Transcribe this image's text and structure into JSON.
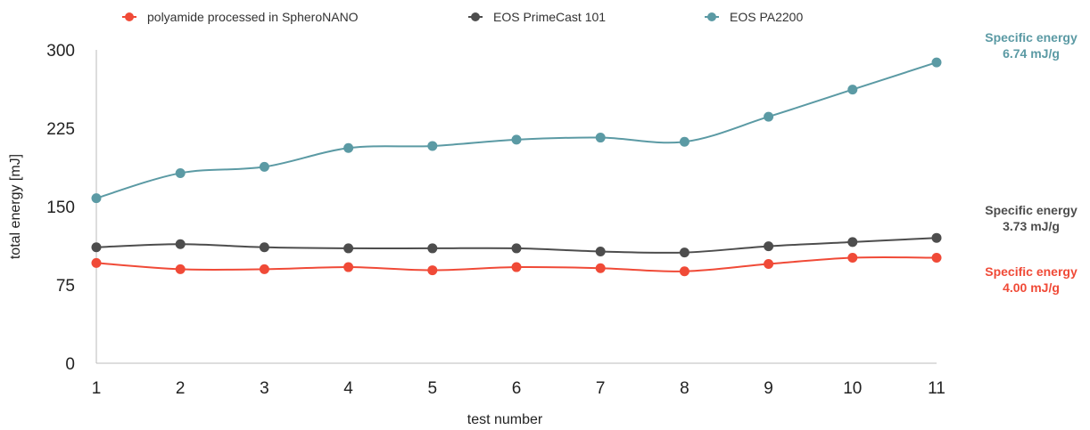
{
  "chart_data": {
    "type": "line",
    "xlabel": "test number",
    "ylabel": "total energy [mJ]",
    "x": [
      1,
      2,
      3,
      4,
      5,
      6,
      7,
      8,
      9,
      10,
      11
    ],
    "ylim": [
      0,
      300
    ],
    "yticks": [
      0,
      75,
      150,
      225,
      300
    ],
    "grid": false,
    "legend_position": "top",
    "series": [
      {
        "name": "polyamide processed in SpheroNANO",
        "color": "#f04a37",
        "values": [
          96,
          90,
          90,
          92,
          89,
          92,
          91,
          88,
          95,
          101,
          101
        ]
      },
      {
        "name": "EOS PrimeCast 101",
        "color": "#4d4d4d",
        "values": [
          111,
          114,
          111,
          110,
          110,
          110,
          107,
          106,
          112,
          116,
          120
        ]
      },
      {
        "name": "EOS PA2200",
        "color": "#5b9aa4",
        "values": [
          158,
          182,
          188,
          206,
          208,
          214,
          216,
          212,
          236,
          262,
          288
        ]
      }
    ],
    "annotations": [
      {
        "series": "EOS PA2200",
        "line1": "Specific energy",
        "line2": "6.74 mJ/g",
        "color": "#5b9aa4"
      },
      {
        "series": "EOS PrimeCast 101",
        "line1": "Specific energy",
        "line2": "3.73 mJ/g",
        "color": "#4d4d4d"
      },
      {
        "series": "polyamide processed in SpheroNANO",
        "line1": "Specific energy",
        "line2": "4.00 mJ/g",
        "color": "#f04a37"
      }
    ]
  }
}
